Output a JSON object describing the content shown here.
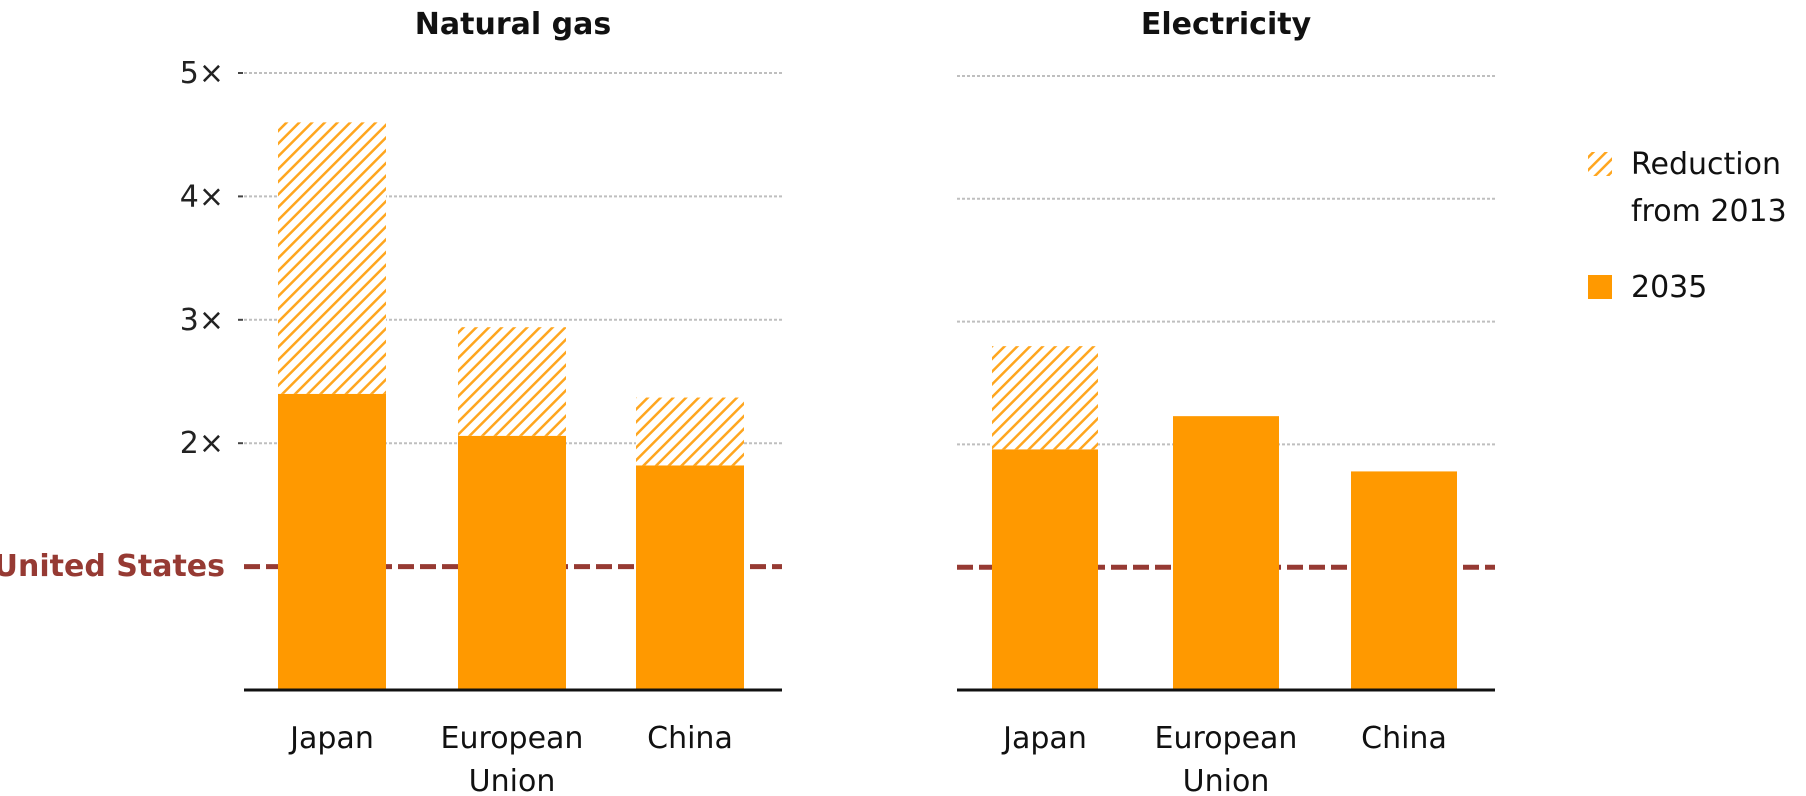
{
  "colors": {
    "solid": "#FF9900",
    "hatch_stroke": "#FFA61F",
    "hatch_bg": "#FFFFFF",
    "reference": "#963A33",
    "grid": "#BFBFBF",
    "axis": "#111111"
  },
  "legend": {
    "items": [
      {
        "label_lines": [
          "Reduction",
          "from 2013"
        ],
        "style": "hatched"
      },
      {
        "label_lines": [
          "2035"
        ],
        "style": "solid"
      }
    ]
  },
  "reference_line": {
    "label": "United States",
    "value": 1
  },
  "chart_data": [
    {
      "type": "bar",
      "stacked": true,
      "title": "Natural gas",
      "categories": [
        [
          "Japan"
        ],
        [
          "European",
          "Union"
        ],
        [
          "China"
        ]
      ],
      "y_ticks": [
        {
          "value": 2,
          "label": "2×"
        },
        {
          "value": 3,
          "label": "3×"
        },
        {
          "value": 4,
          "label": "4×"
        },
        {
          "value": 5,
          "label": "5×"
        }
      ],
      "ylim": [
        0,
        5
      ],
      "grid": true,
      "series": [
        {
          "name": "2035",
          "style": "solid",
          "values": [
            2.4,
            2.06,
            1.82
          ]
        },
        {
          "name": "Reduction from 2013",
          "style": "hatched",
          "values": [
            2.2,
            0.88,
            0.55
          ]
        }
      ]
    },
    {
      "type": "bar",
      "stacked": true,
      "title": "Electricity",
      "categories": [
        [
          "Japan"
        ],
        [
          "European",
          "Union"
        ],
        [
          "China"
        ]
      ],
      "y_ticks": [],
      "ylim": [
        0,
        5
      ],
      "grid": true,
      "series": [
        {
          "name": "2035",
          "style": "solid",
          "values": [
            1.96,
            2.23,
            1.78
          ]
        },
        {
          "name": "Reduction from 2013",
          "style": "hatched",
          "values": [
            0.84,
            0,
            0
          ]
        }
      ]
    }
  ]
}
